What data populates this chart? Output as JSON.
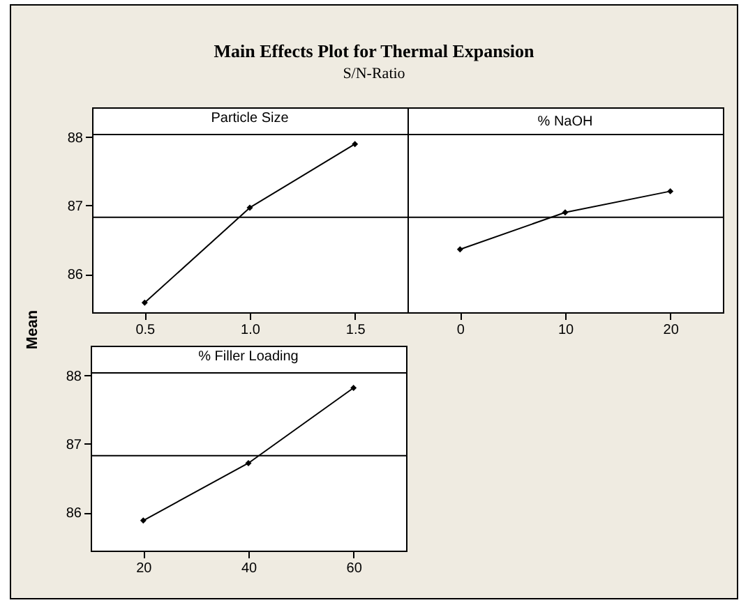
{
  "chart_data": [
    {
      "type": "other",
      "title": "Main Effects Plot for Thermal Expansion",
      "subtitle": "S/N-Ratio"
    },
    {
      "type": "line",
      "title": "Particle Size",
      "ylabel": "Mean",
      "x": [
        0.5,
        1.0,
        1.5
      ],
      "series": [
        {
          "color": "#000000",
          "values": [
            85.58,
            86.97,
            87.9
          ]
        }
      ],
      "xlim": [
        0.25,
        1.75
      ],
      "xticks": [
        0.5,
        {
          "value": 1,
          "label": "1.0"
        },
        1.5
      ],
      "ylim": [
        85.44,
        88.05
      ],
      "yticks": [
        86,
        87,
        88
      ],
      "marker": "diamond",
      "ref_lines": [
        {
          "axis": "y",
          "value": 86.83,
          "color": "#000000"
        }
      ],
      "grid": false
    },
    {
      "type": "line",
      "title": "% NaOH",
      "x": [
        0,
        10,
        20
      ],
      "series": [
        {
          "color": "#000000",
          "values": [
            86.36,
            86.9,
            87.21
          ]
        }
      ],
      "xlim": [
        -5,
        25
      ],
      "xticks": [
        0,
        10,
        20
      ],
      "ylim": [
        85.44,
        88.05
      ],
      "tick_labels": "x",
      "marker": "diamond",
      "ref_lines": [
        {
          "axis": "y",
          "value": 86.83,
          "color": "#000000"
        }
      ],
      "grid": false
    },
    {
      "type": "line",
      "title": "% Filler Loading",
      "x": [
        20,
        40,
        60
      ],
      "series": [
        {
          "color": "#000000",
          "values": [
            85.88,
            86.72,
            87.82
          ]
        }
      ],
      "xlim": [
        10,
        70
      ],
      "xticks": [
        20,
        40,
        60
      ],
      "ylim": [
        85.44,
        88.05
      ],
      "yticks": [
        86,
        87,
        88
      ],
      "marker": "diamond",
      "ref_lines": [
        {
          "axis": "y",
          "value": 86.83,
          "color": "#000000"
        }
      ],
      "grid": false
    }
  ]
}
